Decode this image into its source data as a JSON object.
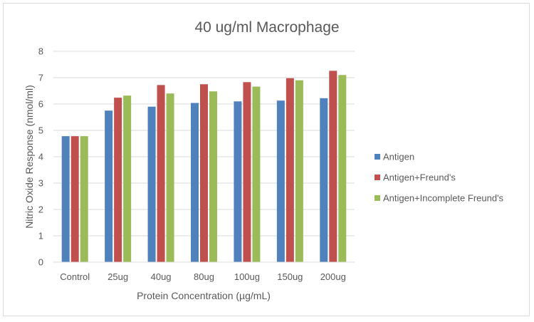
{
  "chart_data": {
    "type": "bar",
    "title": "40 ug/ml Macrophage",
    "xlabel": "Protein Concentration (µg/mL)",
    "ylabel": "Nitric Oxide Response (nmol/ml)",
    "categories": [
      "Control",
      "25ug",
      "40ug",
      "80ug",
      "100ug",
      "150ug",
      "200ug"
    ],
    "ylim": [
      0,
      8
    ],
    "yticks": [
      0,
      1,
      2,
      3,
      4,
      5,
      6,
      7,
      8
    ],
    "grid": true,
    "legend_position": "right",
    "series": [
      {
        "name": "Antigen",
        "color": "#4f81bd",
        "values": [
          4.78,
          5.75,
          5.9,
          6.04,
          6.1,
          6.13,
          6.22
        ]
      },
      {
        "name": "Antigen+Freund's",
        "color": "#c0504d",
        "values": [
          4.78,
          6.24,
          6.72,
          6.75,
          6.83,
          6.98,
          7.26
        ]
      },
      {
        "name": "Antigen+Incomplete Freund's",
        "color": "#9bbb59",
        "values": [
          4.78,
          6.32,
          6.4,
          6.48,
          6.66,
          6.9,
          7.1
        ]
      }
    ]
  }
}
